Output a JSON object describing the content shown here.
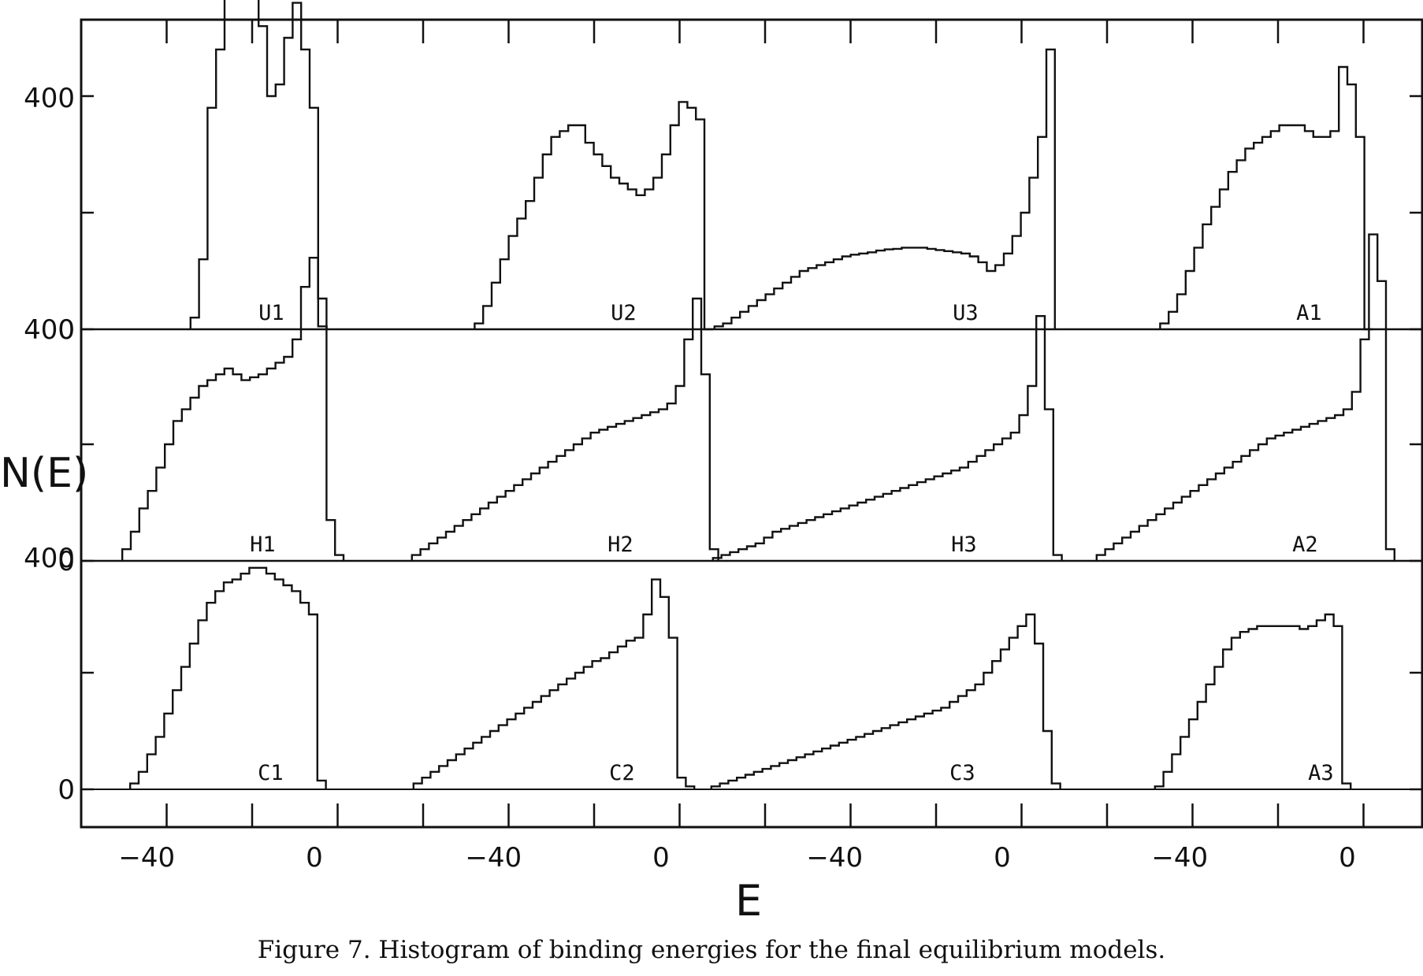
{
  "chart_data": {
    "type": "bar",
    "title": "",
    "xlabel": "E",
    "ylabel": "N(E)",
    "caption": "Figure 7. Histogram of binding energies for the final equilibrium models.",
    "x_tick_labels": [
      "-40",
      "0"
    ],
    "y_tick_labels": [
      "0",
      "400"
    ],
    "ylim": [
      -110,
      790
    ],
    "grid": false,
    "bin_width": 2,
    "rows": [
      {
        "panels": [
          {
            "name": "U1",
            "x0": -28,
            "values": [
              20,
              120,
              380,
              480,
              580,
              650,
              650,
              620,
              520,
              400,
              420,
              500,
              560,
              480,
              380,
              5
            ]
          },
          {
            "name": "U2",
            "x0": -44,
            "values": [
              10,
              40,
              80,
              120,
              160,
              190,
              220,
              260,
              300,
              330,
              340,
              350,
              350,
              320,
              300,
              280,
              260,
              250,
              240,
              230,
              240,
              260,
              300,
              350,
              390,
              380,
              360,
              0
            ]
          },
          {
            "name": "U3",
            "x0": -68,
            "values": [
              5,
              10,
              20,
              30,
              40,
              50,
              60,
              70,
              80,
              90,
              100,
              105,
              110,
              115,
              120,
              125,
              128,
              130,
              132,
              135,
              137,
              138,
              140,
              140,
              140,
              138,
              136,
              134,
              132,
              130,
              125,
              115,
              100,
              110,
              130,
              160,
              200,
              260,
              330,
              480
            ]
          },
          {
            "name": "A1",
            "x0": -44,
            "values": [
              10,
              30,
              60,
              100,
              140,
              180,
              210,
              240,
              270,
              290,
              310,
              320,
              330,
              340,
              350,
              350,
              350,
              340,
              330,
              330,
              340,
              450,
              420,
              330,
              0
            ]
          }
        ]
      },
      {
        "panels": [
          {
            "name": "H1",
            "x0": -42,
            "values": [
              20,
              50,
              90,
              120,
              160,
              200,
              240,
              260,
              280,
              300,
              310,
              320,
              330,
              320,
              310,
              315,
              320,
              330,
              340,
              350,
              380,
              470,
              520,
              450,
              70,
              10
            ]
          },
          {
            "name": "H2",
            "x0": -58,
            "values": [
              10,
              20,
              30,
              40,
              50,
              60,
              70,
              80,
              90,
              100,
              110,
              120,
              130,
              140,
              150,
              160,
              170,
              180,
              190,
              200,
              210,
              220,
              225,
              230,
              235,
              240,
              245,
              250,
              255,
              260,
              270,
              300,
              380,
              450,
              320,
              20
            ]
          },
          {
            "name": "H3",
            "x0": -68,
            "values": [
              5,
              10,
              15,
              20,
              25,
              30,
              40,
              50,
              55,
              60,
              65,
              70,
              75,
              80,
              85,
              90,
              95,
              100,
              105,
              110,
              115,
              120,
              125,
              130,
              135,
              140,
              145,
              150,
              155,
              160,
              170,
              180,
              190,
              200,
              210,
              220,
              250,
              300,
              420,
              260,
              10
            ]
          },
          {
            "name": "A2",
            "x0": -58,
            "values": [
              10,
              20,
              30,
              40,
              50,
              60,
              70,
              80,
              90,
              100,
              110,
              120,
              130,
              140,
              150,
              160,
              170,
              180,
              190,
              200,
              210,
              215,
              220,
              225,
              230,
              235,
              240,
              245,
              250,
              260,
              290,
              380,
              560,
              480,
              20
            ]
          }
        ]
      },
      {
        "panels": [
          {
            "name": "C1",
            "x0": -42,
            "values": [
              10,
              30,
              60,
              90,
              130,
              170,
              210,
              250,
              290,
              320,
              340,
              355,
              360,
              370,
              380,
              380,
              370,
              360,
              350,
              340,
              320,
              300,
              15
            ]
          },
          {
            "name": "C2",
            "x0": -58,
            "values": [
              10,
              20,
              30,
              40,
              50,
              60,
              70,
              80,
              90,
              100,
              110,
              120,
              130,
              140,
              150,
              160,
              170,
              180,
              190,
              200,
              210,
              220,
              225,
              235,
              245,
              255,
              260,
              300,
              360,
              330,
              260,
              20,
              5
            ]
          },
          {
            "name": "C3",
            "x0": -68,
            "values": [
              5,
              10,
              15,
              20,
              25,
              30,
              35,
              40,
              45,
              50,
              55,
              60,
              65,
              70,
              75,
              80,
              85,
              90,
              95,
              100,
              105,
              110,
              115,
              120,
              125,
              130,
              135,
              140,
              150,
              160,
              170,
              180,
              200,
              220,
              240,
              260,
              280,
              300,
              250,
              100,
              10
            ]
          },
          {
            "name": "A3",
            "x0": -48,
            "values": [
              5,
              30,
              60,
              90,
              120,
              150,
              180,
              210,
              240,
              260,
              270,
              275,
              280,
              280,
              280,
              280,
              280,
              275,
              280,
              290,
              300,
              280,
              10
            ]
          }
        ]
      }
    ]
  }
}
